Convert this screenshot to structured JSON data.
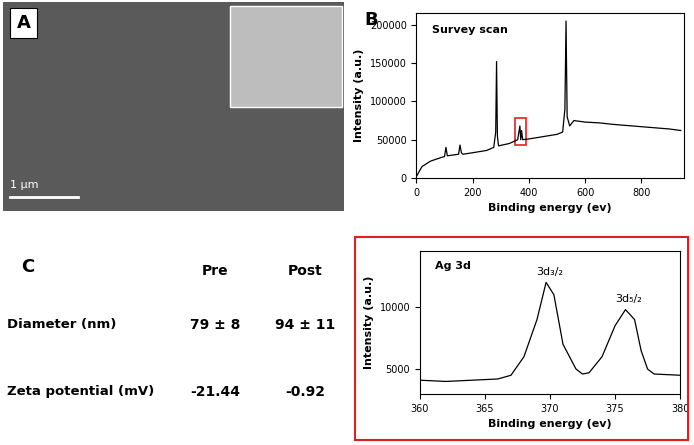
{
  "panel_a": {
    "label": "A",
    "scale_bar": "1 μm"
  },
  "panel_b_label": "B",
  "chart_data": [
    {
      "type": "line",
      "title": "Survey scan",
      "x_label": "Binding energy (ev)",
      "y_label": "Intensity (a.u.)",
      "x": [
        0,
        20,
        50,
        90,
        100,
        105,
        110,
        150,
        155,
        160,
        165,
        200,
        250,
        275,
        282,
        285,
        288,
        292,
        330,
        360,
        368,
        371,
        374,
        378,
        400,
        450,
        500,
        520,
        528,
        532,
        536,
        545,
        560,
        600,
        650,
        700,
        800,
        900,
        940
      ],
      "values": [
        2000,
        15000,
        22000,
        27000,
        28000,
        40000,
        29000,
        31000,
        43000,
        33000,
        31000,
        33000,
        36000,
        40000,
        60000,
        152000,
        55000,
        42000,
        45000,
        50000,
        68000,
        50000,
        62000,
        50000,
        51000,
        54000,
        57000,
        60000,
        90000,
        205000,
        80000,
        68000,
        75000,
        73000,
        72000,
        70000,
        67000,
        64000,
        62000
      ],
      "color": "#000000",
      "xlim": [
        0,
        950
      ],
      "xticks": [
        0,
        200,
        400,
        600,
        800
      ],
      "ylim": [
        0,
        215000
      ],
      "yticks": [
        0,
        50000,
        100000,
        150000,
        200000
      ]
    },
    {
      "type": "line",
      "title": "Ag 3d",
      "x_label": "Binding energy (ev)",
      "y_label": "Intensity (a.u.)",
      "x": [
        360,
        362,
        364,
        366,
        367,
        368,
        369,
        369.7,
        370.3,
        371,
        372,
        372.5,
        373,
        374,
        375,
        375.8,
        376.5,
        377,
        377.5,
        378,
        380
      ],
      "values": [
        4100,
        4000,
        4100,
        4200,
        4500,
        6000,
        9000,
        12000,
        11000,
        7000,
        5000,
        4600,
        4700,
        6000,
        8500,
        9800,
        9000,
        6500,
        5000,
        4600,
        4500
      ],
      "color": "#000000",
      "annotations": [
        {
          "text": "3d₃/₂",
          "x": 370,
          "y": 12000
        },
        {
          "text": "3d₅/₂",
          "x": 376,
          "y": 9800
        }
      ],
      "xlim": [
        360,
        380
      ],
      "xticks": [
        360,
        365,
        370,
        375,
        380
      ],
      "ylim": [
        3000,
        14500
      ],
      "yticks": [
        5000,
        10000
      ]
    }
  ],
  "table": {
    "label": "C",
    "columns": [
      "Pre",
      "Post"
    ],
    "rows": [
      {
        "label": "Diameter (nm)",
        "values": [
          "79 ± 8",
          "94 ± 11"
        ]
      },
      {
        "label": "Zeta potential (mV)",
        "values": [
          "-21.44",
          "-0.92"
        ]
      }
    ]
  }
}
